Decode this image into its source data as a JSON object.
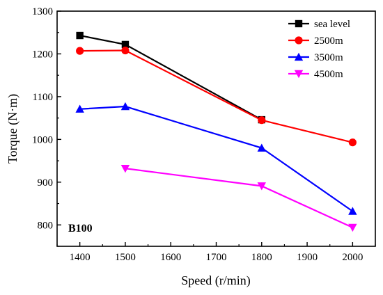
{
  "chart_data": {
    "type": "line",
    "xlabel": "Speed (r/min)",
    "ylabel": "Torque (N·m)",
    "xlim": [
      1350,
      2050
    ],
    "ylim": [
      750,
      1300
    ],
    "xticks": [
      1400,
      1500,
      1600,
      1700,
      1800,
      1900,
      2000
    ],
    "yticks": [
      800,
      900,
      1000,
      1100,
      1200,
      1300
    ],
    "grid": false,
    "legend_position": "top-right",
    "annotation": "B100",
    "series": [
      {
        "name": "sea level",
        "color": "#000000",
        "marker": "square",
        "points": [
          [
            1400,
            1243
          ],
          [
            1500,
            1222
          ],
          [
            1800,
            1046
          ]
        ]
      },
      {
        "name": "2500m",
        "color": "#ff0000",
        "marker": "circle",
        "points": [
          [
            1400,
            1207
          ],
          [
            1500,
            1208
          ],
          [
            1800,
            1045
          ],
          [
            2000,
            993
          ]
        ]
      },
      {
        "name": "3500m",
        "color": "#0000ff",
        "marker": "triangle-up",
        "points": [
          [
            1400,
            1071
          ],
          [
            1500,
            1077
          ],
          [
            1800,
            980
          ],
          [
            2000,
            832
          ]
        ]
      },
      {
        "name": "4500m",
        "color": "#ff00ff",
        "marker": "triangle-down",
        "points": [
          [
            1500,
            932
          ],
          [
            1800,
            891
          ],
          [
            2000,
            794
          ]
        ]
      }
    ]
  }
}
